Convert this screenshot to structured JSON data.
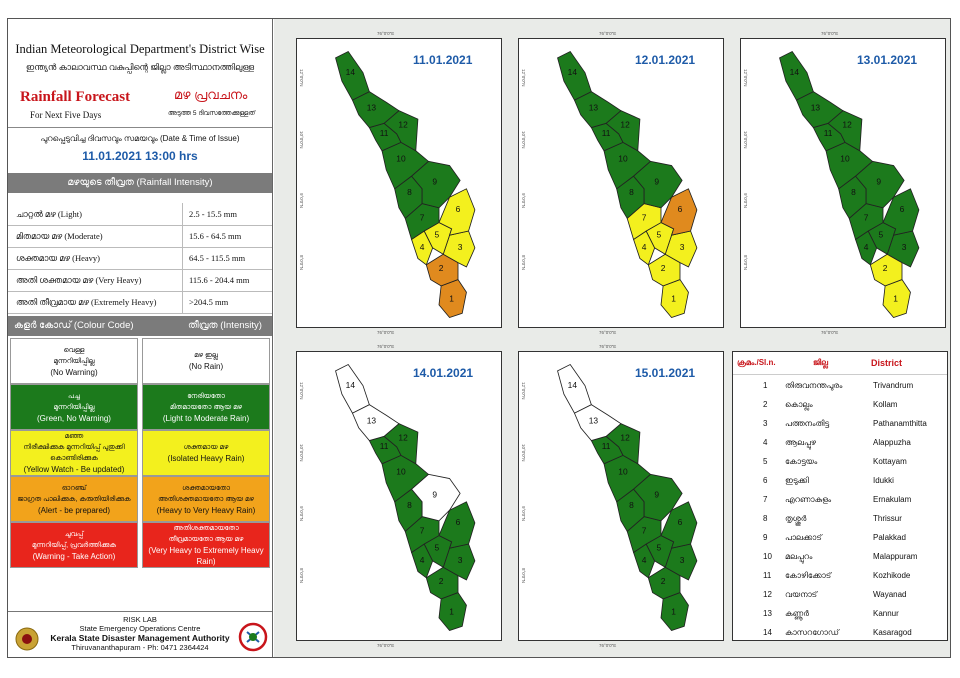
{
  "header": {
    "line1": "Indian Meteorological Department's District Wise",
    "line2": "ഇന്ത്യൻ കാലാവസ്ഥ വകുപ്പിന്റെ ജില്ലാ അടിസ്ഥാനത്തിലുള്ള",
    "title_en": "Rainfall Forecast",
    "subtitle_en": "For Next Five Days",
    "title_ml": "മഴ പ്രവചനം",
    "subtitle_ml": "അടുത്ത 5 ദിവസത്തേക്കുള്ളത്"
  },
  "issue": {
    "label": "പുറപ്പെടുവിച്ച ദിവസവും സമയവും (Date & Time of Issue)",
    "datetime": "11.01.2021   13:00 hrs"
  },
  "intensity": {
    "heading": "മഴയുടെ തീവ്രത (Rainfall Intensity)",
    "rows": [
      {
        "label": "ചാറ്റൽ മഴ (Light)",
        "range": "2.5 - 15.5 mm"
      },
      {
        "label": "മിതമായ മഴ (Moderate)",
        "range": "15.6 - 64.5 mm"
      },
      {
        "label": "ശക്തമായ മഴ (Heavy)",
        "range": "64.5 - 115.5 mm"
      },
      {
        "label": "അതി ശക്തമായ മഴ (Very Heavy)",
        "range": "115.6 - 204.4 mm"
      },
      {
        "label": "അതി തീവ്രമായ മഴ (Extremely Heavy)",
        "range": ">204.5 mm"
      }
    ]
  },
  "legend": {
    "col1_head": "കളർ കോഡ് (Colour Code)",
    "col2_head": "തീവ്രത (Intensity)",
    "rows": [
      {
        "color": "#ffffff",
        "text_color": "#111111",
        "left_ml": "വെള്ള",
        "left_ml2": "മുന്നറിയിപ്പില്ല",
        "left_en": "(No Warning)",
        "right_ml": "മഴ ഇല്ല",
        "right_ml2": "",
        "right_en": "(No Rain)"
      },
      {
        "color": "#1c7a1c",
        "text_color": "#ffffff",
        "left_ml": "പച്ച",
        "left_ml2": "മുന്നറിയിപ്പില്ല",
        "left_en": "(Green, No Warning)",
        "right_ml": "നേരിയതോ",
        "right_ml2": "മിതമായതോ ആയ മഴ",
        "right_en": "(Light to Moderate Rain)"
      },
      {
        "color": "#f3f01e",
        "text_color": "#111111",
        "left_ml": "മഞ്ഞ",
        "left_ml2": "നിരീക്ഷിക്കുക മുന്നറിയിപ്പ് പുതുക്കി കൊണ്ടിരിക്കുക",
        "left_en": "(Yellow Watch - Be updated)",
        "right_ml": "ശക്തമായ മഴ",
        "right_ml2": "",
        "right_en": "(Isolated Heavy Rain)"
      },
      {
        "color": "#f2a31b",
        "text_color": "#111111",
        "left_ml": "ഓറഞ്ച്",
        "left_ml2": "ജാഗ്രത പാലിക്കുക, കരുതിയിരിക്കുക",
        "left_en": "(Alert - be prepared)",
        "right_ml": "ശക്തമായതോ",
        "right_ml2": "അതിശക്തമായതോ ആയ മഴ",
        "right_en": "(Heavy to Very Heavy Rain)"
      },
      {
        "color": "#e8251c",
        "text_color": "#ffffff",
        "left_ml": "ചുവപ്പ്",
        "left_ml2": "മുന്നറിയിപ്പ്, പ്രവർത്തിക്കുക",
        "left_en": "(Warning - Take Action)",
        "right_ml": "അതിശക്തമായതോ",
        "right_ml2": "തീവ്രമായതോ ആയ മഴ",
        "right_en": "(Very Heavy to Extremely Heavy Rain)"
      }
    ]
  },
  "footer": {
    "line1": "RISK LAB",
    "line2": "State Emergency Operations Centre",
    "line3": "Kerala State Disaster Management Authority",
    "line4": "Thiruvananthapuram - Ph: 0471 2364424"
  },
  "colors": {
    "white": "#ffffff",
    "green": "#1c7a1c",
    "yellow": "#f3f01e",
    "orange": "#e08a1e",
    "label_blue": "#1e5ba8"
  },
  "map_axis": {
    "lon_top": "76°0'0\"E",
    "lat1": "12°0'0\"N",
    "lat2": "10°0'0\"N",
    "lat3": "9°0'0\"N",
    "lat4": "8°0'0\"N"
  },
  "maps": [
    {
      "date": "11.01.2021",
      "colors": [
        "orange",
        "orange",
        "yellow",
        "yellow",
        "yellow",
        "yellow",
        "green",
        "green",
        "green",
        "green",
        "green",
        "green",
        "green",
        "green"
      ]
    },
    {
      "date": "12.01.2021",
      "colors": [
        "yellow",
        "yellow",
        "yellow",
        "yellow",
        "yellow",
        "orange",
        "yellow",
        "green",
        "green",
        "green",
        "green",
        "green",
        "green",
        "green"
      ]
    },
    {
      "date": "13.01.2021",
      "colors": [
        "yellow",
        "yellow",
        "green",
        "green",
        "green",
        "green",
        "green",
        "green",
        "green",
        "green",
        "green",
        "green",
        "green",
        "green"
      ]
    },
    {
      "date": "14.01.2021",
      "colors": [
        "green",
        "green",
        "green",
        "green",
        "green",
        "green",
        "green",
        "green",
        "white",
        "green",
        "green",
        "green",
        "white",
        "white"
      ]
    },
    {
      "date": "15.01.2021",
      "colors": [
        "green",
        "green",
        "green",
        "green",
        "green",
        "green",
        "green",
        "green",
        "green",
        "green",
        "green",
        "green",
        "white",
        "white"
      ]
    }
  ],
  "district_table": {
    "head_no": "ക്രമം./Sl.n.",
    "head_ml": "ജില്ല",
    "head_en": "District",
    "rows": [
      {
        "no": "1",
        "ml": "തിരുവനന്തപുരം",
        "en": "Trivandrum"
      },
      {
        "no": "2",
        "ml": "കൊല്ലം",
        "en": "Kollam"
      },
      {
        "no": "3",
        "ml": "പത്തനംതിട്ട",
        "en": "Pathanamthitta"
      },
      {
        "no": "4",
        "ml": "ആലപ്പുഴ",
        "en": "Alappuzha"
      },
      {
        "no": "5",
        "ml": "കോട്ടയം",
        "en": "Kottayam"
      },
      {
        "no": "6",
        "ml": "ഇടുക്കി",
        "en": "Idukki"
      },
      {
        "no": "7",
        "ml": "എറണാകുളം",
        "en": "Ernakulam"
      },
      {
        "no": "8",
        "ml": "തൃശ്ശൂർ",
        "en": "Thrissur"
      },
      {
        "no": "9",
        "ml": "പാലക്കാട്",
        "en": "Palakkad"
      },
      {
        "no": "10",
        "ml": "മലപ്പുറം",
        "en": "Malappuram"
      },
      {
        "no": "11",
        "ml": "കോഴിക്കോട്",
        "en": "Kozhikode"
      },
      {
        "no": "12",
        "ml": "വയനാട്",
        "en": "Wayanad"
      },
      {
        "no": "13",
        "ml": "കണ്ണൂർ",
        "en": "Kannur"
      },
      {
        "no": "14",
        "ml": "കാസറഗോഡ്",
        "en": "Kasaragod"
      }
    ]
  }
}
